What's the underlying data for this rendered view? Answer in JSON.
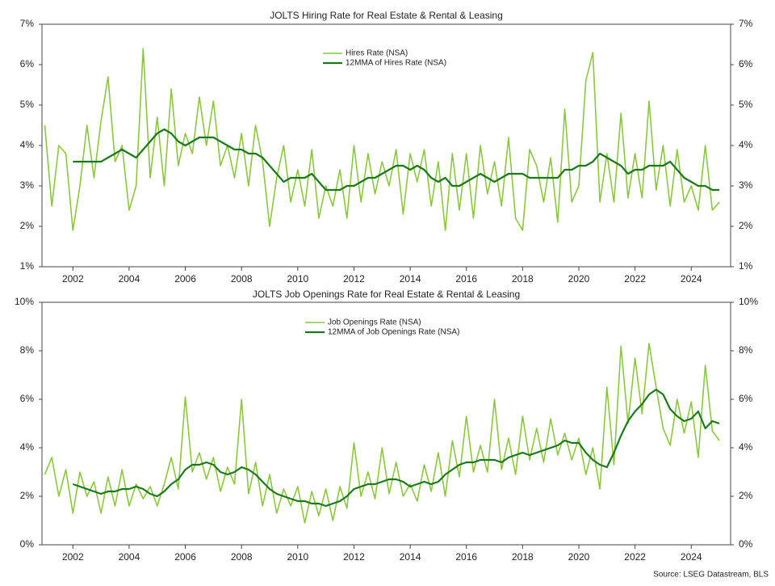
{
  "chart_data": [
    {
      "type": "line",
      "title": "JOLTS Hiring Rate for Real Estate & Rental & Leasing",
      "x": [
        2001,
        2001.25,
        2001.5,
        2001.75,
        2002,
        2002.25,
        2002.5,
        2002.75,
        2003,
        2003.25,
        2003.5,
        2003.75,
        2004,
        2004.25,
        2004.5,
        2004.75,
        2005,
        2005.25,
        2005.5,
        2005.75,
        2006,
        2006.25,
        2006.5,
        2006.75,
        2007,
        2007.25,
        2007.5,
        2007.75,
        2008,
        2008.25,
        2008.5,
        2008.75,
        2009,
        2009.25,
        2009.5,
        2009.75,
        2010,
        2010.25,
        2010.5,
        2010.75,
        2011,
        2011.25,
        2011.5,
        2011.75,
        2012,
        2012.25,
        2012.5,
        2012.75,
        2013,
        2013.25,
        2013.5,
        2013.75,
        2014,
        2014.25,
        2014.5,
        2014.75,
        2015,
        2015.25,
        2015.5,
        2015.75,
        2016,
        2016.25,
        2016.5,
        2016.75,
        2017,
        2017.25,
        2017.5,
        2017.75,
        2018,
        2018.25,
        2018.5,
        2018.75,
        2019,
        2019.25,
        2019.5,
        2019.75,
        2020,
        2020.25,
        2020.5,
        2020.75,
        2021,
        2021.25,
        2021.5,
        2021.75,
        2022,
        2022.25,
        2022.5,
        2022.75,
        2023,
        2023.25,
        2023.5,
        2023.75,
        2024,
        2024.25,
        2024.5,
        2024.75,
        2025
      ],
      "series": [
        {
          "name": "Hires Rate (NSA)",
          "color": "#8cc63f",
          "values": [
            4.5,
            2.5,
            4.0,
            3.8,
            1.9,
            3.0,
            4.5,
            3.2,
            4.6,
            5.7,
            3.6,
            4.0,
            2.4,
            3.0,
            6.4,
            3.2,
            4.7,
            3.0,
            5.4,
            3.5,
            4.3,
            3.8,
            5.2,
            4.0,
            5.1,
            3.5,
            4.0,
            3.2,
            4.3,
            3.0,
            4.5,
            3.6,
            2.0,
            3.2,
            4.0,
            2.6,
            3.4,
            2.5,
            3.9,
            2.2,
            3.0,
            2.5,
            3.4,
            2.2,
            4.0,
            2.6,
            3.8,
            2.8,
            3.6,
            3.0,
            3.9,
            2.3,
            3.8,
            3.1,
            3.9,
            2.5,
            3.6,
            1.9,
            3.8,
            2.4,
            3.8,
            2.2,
            4.0,
            2.8,
            3.6,
            2.5,
            4.2,
            2.2,
            1.9,
            3.9,
            3.5,
            2.6,
            3.7,
            2.1,
            4.9,
            2.6,
            3.0,
            5.6,
            6.3,
            2.6,
            3.8,
            2.6,
            4.8,
            2.7,
            3.8,
            2.7,
            5.1,
            2.9,
            4.0,
            2.5,
            3.9,
            2.6,
            3.0,
            2.4,
            4.0,
            2.4,
            2.6
          ]
        },
        {
          "name": "12MMA of Hires Rate (NSA)",
          "color": "#1a7a1a",
          "values": [
            null,
            null,
            null,
            null,
            3.6,
            3.6,
            3.6,
            3.6,
            3.6,
            3.7,
            3.8,
            3.9,
            3.8,
            3.7,
            3.9,
            4.1,
            4.3,
            4.4,
            4.3,
            4.1,
            4.0,
            4.1,
            4.2,
            4.2,
            4.2,
            4.1,
            4.0,
            3.9,
            3.9,
            3.8,
            3.8,
            3.7,
            3.5,
            3.3,
            3.1,
            3.2,
            3.2,
            3.2,
            3.3,
            3.1,
            2.9,
            2.9,
            2.9,
            3.0,
            3.0,
            3.1,
            3.2,
            3.2,
            3.3,
            3.4,
            3.5,
            3.5,
            3.4,
            3.5,
            3.4,
            3.2,
            3.1,
            3.2,
            3.0,
            3.0,
            3.1,
            3.2,
            3.3,
            3.2,
            3.1,
            3.2,
            3.3,
            3.3,
            3.3,
            3.2,
            3.2,
            3.2,
            3.2,
            3.2,
            3.4,
            3.4,
            3.5,
            3.5,
            3.6,
            3.8,
            3.7,
            3.6,
            3.5,
            3.3,
            3.4,
            3.4,
            3.5,
            3.5,
            3.5,
            3.6,
            3.4,
            3.2,
            3.1,
            3.0,
            3.0,
            2.9,
            2.9
          ]
        }
      ],
      "xlim": [
        2000.9,
        2025.4
      ],
      "xticks": [
        2002,
        2004,
        2006,
        2008,
        2010,
        2012,
        2014,
        2016,
        2018,
        2020,
        2022,
        2024
      ],
      "ylim": [
        1,
        7
      ],
      "yticks": [
        {
          "value": 1,
          "label": "1%"
        },
        {
          "value": 2,
          "label": "2%"
        },
        {
          "value": 3,
          "label": "3%"
        },
        {
          "value": 4,
          "label": "4%"
        },
        {
          "value": 5,
          "label": "5%"
        },
        {
          "value": 6,
          "label": "6%"
        },
        {
          "value": 7,
          "label": "7%"
        }
      ]
    },
    {
      "type": "line",
      "title": "JOLTS Job Openings Rate for Real Estate & Rental & Leasing",
      "x": [
        2001,
        2001.25,
        2001.5,
        2001.75,
        2002,
        2002.25,
        2002.5,
        2002.75,
        2003,
        2003.25,
        2003.5,
        2003.75,
        2004,
        2004.25,
        2004.5,
        2004.75,
        2005,
        2005.25,
        2005.5,
        2005.75,
        2006,
        2006.25,
        2006.5,
        2006.75,
        2007,
        2007.25,
        2007.5,
        2007.75,
        2008,
        2008.25,
        2008.5,
        2008.75,
        2009,
        2009.25,
        2009.5,
        2009.75,
        2010,
        2010.25,
        2010.5,
        2010.75,
        2011,
        2011.25,
        2011.5,
        2011.75,
        2012,
        2012.25,
        2012.5,
        2012.75,
        2013,
        2013.25,
        2013.5,
        2013.75,
        2014,
        2014.25,
        2014.5,
        2014.75,
        2015,
        2015.25,
        2015.5,
        2015.75,
        2016,
        2016.25,
        2016.5,
        2016.75,
        2017,
        2017.25,
        2017.5,
        2017.75,
        2018,
        2018.25,
        2018.5,
        2018.75,
        2019,
        2019.25,
        2019.5,
        2019.75,
        2020,
        2020.25,
        2020.5,
        2020.75,
        2021,
        2021.25,
        2021.5,
        2021.75,
        2022,
        2022.25,
        2022.5,
        2022.75,
        2023,
        2023.25,
        2023.5,
        2023.75,
        2024,
        2024.25,
        2024.5,
        2024.75,
        2025
      ],
      "series": [
        {
          "name": "Job Openings Rate (NSA)",
          "color": "#8cc63f",
          "values": [
            2.9,
            3.6,
            2.0,
            3.1,
            1.3,
            3.0,
            2.0,
            2.6,
            1.3,
            2.8,
            1.6,
            3.1,
            1.6,
            2.5,
            1.9,
            2.4,
            1.6,
            2.5,
            3.6,
            2.3,
            6.1,
            3.0,
            3.8,
            2.7,
            3.6,
            2.2,
            3.2,
            2.5,
            6.0,
            2.1,
            3.4,
            1.6,
            2.9,
            1.3,
            2.3,
            1.6,
            2.4,
            0.9,
            2.2,
            1.2,
            2.3,
            1.0,
            2.4,
            1.5,
            4.2,
            2.0,
            3.0,
            1.9,
            4.0,
            2.1,
            3.4,
            2.0,
            2.5,
            1.8,
            3.3,
            2.2,
            3.8,
            2.0,
            4.3,
            2.8,
            5.3,
            3.0,
            4.1,
            3.0,
            6.0,
            3.1,
            4.4,
            2.9,
            5.3,
            3.5,
            4.8,
            3.4,
            5.2,
            3.7,
            4.6,
            3.5,
            4.4,
            2.9,
            4.0,
            2.3,
            6.5,
            3.3,
            8.2,
            5.0,
            7.7,
            5.4,
            8.3,
            6.5,
            4.8,
            4.1,
            6.0,
            4.6,
            5.9,
            3.6,
            7.4,
            4.7,
            4.3
          ]
        },
        {
          "name": "12MMA of Job Openings Rate (NSA)",
          "color": "#1a7a1a",
          "values": [
            null,
            null,
            null,
            null,
            2.5,
            2.4,
            2.3,
            2.2,
            2.1,
            2.2,
            2.2,
            2.3,
            2.3,
            2.4,
            2.3,
            2.1,
            2.0,
            2.2,
            2.5,
            2.7,
            3.1,
            3.3,
            3.3,
            3.4,
            3.3,
            3.0,
            2.9,
            3.0,
            3.2,
            3.1,
            2.9,
            2.6,
            2.3,
            2.1,
            2.0,
            1.9,
            1.8,
            1.8,
            1.7,
            1.7,
            1.6,
            1.7,
            1.8,
            2.0,
            2.3,
            2.4,
            2.5,
            2.5,
            2.6,
            2.7,
            2.7,
            2.6,
            2.4,
            2.5,
            2.6,
            2.5,
            2.6,
            2.9,
            3.1,
            3.3,
            3.4,
            3.4,
            3.5,
            3.5,
            3.5,
            3.4,
            3.6,
            3.7,
            3.8,
            3.7,
            3.8,
            3.9,
            4.0,
            4.1,
            4.3,
            4.2,
            4.2,
            3.8,
            3.5,
            3.3,
            3.2,
            3.8,
            4.5,
            5.1,
            5.5,
            5.8,
            6.2,
            6.4,
            6.2,
            5.6,
            5.3,
            5.1,
            5.2,
            5.5,
            4.8,
            5.1,
            5.0
          ]
        }
      ],
      "xlim": [
        2000.9,
        2025.4
      ],
      "xticks": [
        2002,
        2004,
        2006,
        2008,
        2010,
        2012,
        2014,
        2016,
        2018,
        2020,
        2022,
        2024
      ],
      "ylim": [
        0,
        10
      ],
      "yticks": [
        {
          "value": 0,
          "label": "0%"
        },
        {
          "value": 2,
          "label": "2%"
        },
        {
          "value": 4,
          "label": "4%"
        },
        {
          "value": 6,
          "label": "6%"
        },
        {
          "value": 8,
          "label": "8%"
        },
        {
          "value": 10,
          "label": "10%"
        }
      ]
    }
  ],
  "source": "Source: LSEG Datastream, BLS"
}
